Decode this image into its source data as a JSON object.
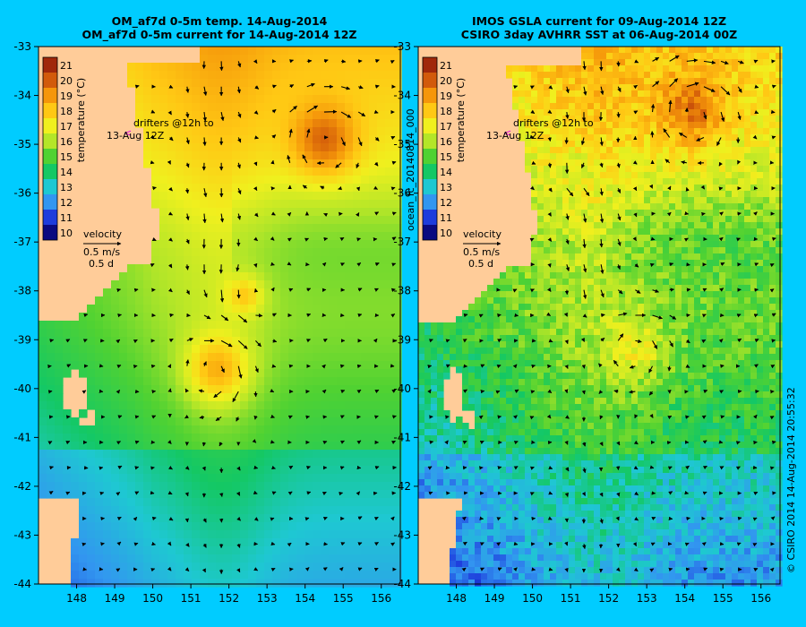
{
  "panels": [
    {
      "id": "left",
      "title1": "OM_af7d 0-5m temp. 14-Aug-2014",
      "title2": "OM_af7d 0-5m current for 14-Aug-2014 12Z",
      "style": "smooth",
      "eddies": [
        {
          "lon": 154.5,
          "lat": -34.9,
          "r": 0.9,
          "spin": "anticyclonic",
          "temp": 20.3
        },
        {
          "lon": 151.7,
          "lat": -39.6,
          "r": 0.85,
          "spin": "anticyclonic",
          "temp": 19.0
        },
        {
          "lon": 152.4,
          "lat": -38.1,
          "r": 0.5,
          "spin": "cyclonic",
          "temp": 18.3
        }
      ]
    },
    {
      "id": "right",
      "title1": "IMOS GSLA current for 09-Aug-2014 12Z",
      "title2": "CSIRO 3day AVHRR SST at 06-Aug-2014 00Z",
      "style": "noisy",
      "eddies": [
        {
          "lon": 154.2,
          "lat": -34.3,
          "r": 1.0,
          "spin": "anticyclonic",
          "temp": 20.2
        },
        {
          "lon": 152.7,
          "lat": -39.2,
          "r": 0.85,
          "spin": "anticyclonic",
          "temp": 17.6
        },
        {
          "lon": 151.2,
          "lat": -35.5,
          "r": 0.5,
          "spin": "cyclonic",
          "temp": 16.8
        }
      ]
    }
  ],
  "map": {
    "lon_range": [
      147.0,
      156.5
    ],
    "lat_range": [
      -44,
      -33
    ],
    "x_ticks": [
      148,
      149,
      150,
      151,
      152,
      153,
      154,
      155,
      156
    ],
    "y_ticks": [
      -33,
      -34,
      -35,
      -36,
      -37,
      -38,
      -39,
      -40,
      -41,
      -42,
      -43,
      -44
    ],
    "land_color": "#ffcc99"
  },
  "colorbar": {
    "ticks": [
      21,
      20,
      19,
      18,
      17,
      16,
      15,
      14,
      13,
      12,
      11,
      10
    ],
    "label": "temperature (°C)",
    "colors": [
      "#0a0a80",
      "#1e3cdc",
      "#3296f0",
      "#1ec8d2",
      "#14c864",
      "#50d232",
      "#b4e628",
      "#f0f01e",
      "#ffc814",
      "#f5960a",
      "#d25a0a",
      "#a0280a"
    ]
  },
  "legend": {
    "drifters_line1": "drifters @12h to",
    "drifters_line2": "13-Aug 12Z",
    "drifter_marker": "<",
    "velocity_title": "velocity",
    "velocity_speed": "0.5 m/s",
    "velocity_time": "0.5 d"
  },
  "side_labels": {
    "run_id": "ocean_fc_20140814_000",
    "credit": "© CSIRO 2014   14-Aug-2014 20:55:32"
  }
}
